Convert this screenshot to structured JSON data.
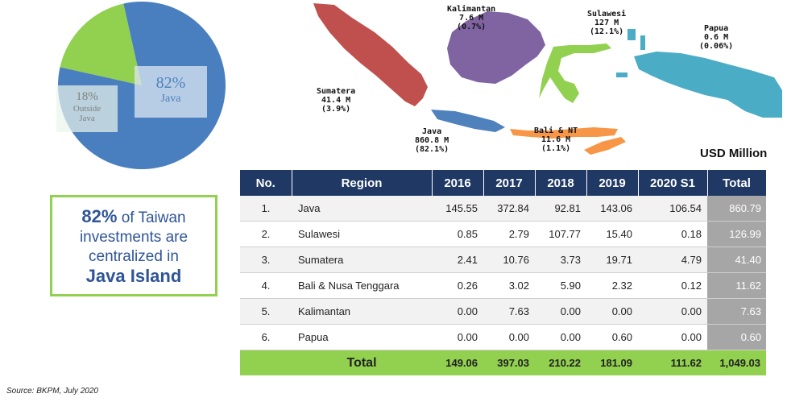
{
  "chart_data": [
    {
      "type": "pie",
      "slices": [
        {
          "label": "Java",
          "value": 82,
          "color": "#4a7fbf"
        },
        {
          "label": "Outside Java",
          "value": 18,
          "color": "#92d050"
        }
      ],
      "labels": {
        "java_pct": "82%",
        "java_name": "Java",
        "outside_pct": "18%",
        "outside_name_1": "Outside",
        "outside_name_2": "Java"
      }
    },
    {
      "type": "table",
      "unit": "USD Million",
      "columns": [
        "No.",
        "Region",
        "2016",
        "2017",
        "2018",
        "2019",
        "2020 S1",
        "Total"
      ],
      "rows": [
        [
          "1.",
          "Java",
          "145.55",
          "372.84",
          "92.81",
          "143.06",
          "106.54",
          "860.79"
        ],
        [
          "2.",
          "Sulawesi",
          "0.85",
          "2.79",
          "107.77",
          "15.40",
          "0.18",
          "126.99"
        ],
        [
          "3.",
          "Sumatera",
          "2.41",
          "10.76",
          "3.73",
          "19.71",
          "4.79",
          "41.40"
        ],
        [
          "4.",
          "Bali & Nusa Tenggara",
          "0.26",
          "3.02",
          "5.90",
          "2.32",
          "0.12",
          "11.62"
        ],
        [
          "5.",
          "Kalimantan",
          "0.00",
          "7.63",
          "0.00",
          "0.00",
          "0.00",
          "7.63"
        ],
        [
          "6.",
          "Papua",
          "0.00",
          "0.00",
          "0.00",
          "0.60",
          "0.00",
          "0.60"
        ]
      ],
      "total_row": [
        "Total",
        "149.06",
        "397.03",
        "210.22",
        "181.09",
        "111.62",
        "1,049.03"
      ]
    }
  ],
  "map": {
    "regions": [
      {
        "name": "Sumatera",
        "value": "41.4 M",
        "share": "(3.9%)",
        "color": "#c0504d"
      },
      {
        "name": "Kalimantan",
        "value": "7.6 M",
        "share": "(0.7%)",
        "color": "#8064a2"
      },
      {
        "name": "Sulawesi",
        "value": "127 M",
        "share": "(12.1%)",
        "color": "#92d050"
      },
      {
        "name": "Papua",
        "value": "0.6 M",
        "share": "(0.06%)",
        "color": "#4bacc6"
      },
      {
        "name": "Java",
        "value": "860.8 M",
        "share": "(82.1%)",
        "color": "#4f81bd"
      },
      {
        "name": "Bali & NT",
        "value": "11.6 M",
        "share": "(1.1%)",
        "color": "#f79646"
      }
    ]
  },
  "callout": {
    "pct": "82%",
    "line1_rest": " of Taiwan",
    "line2": "investments are",
    "line3": "centralized in",
    "line4": "Java Island"
  },
  "source": "Source: BKPM, July 2020"
}
